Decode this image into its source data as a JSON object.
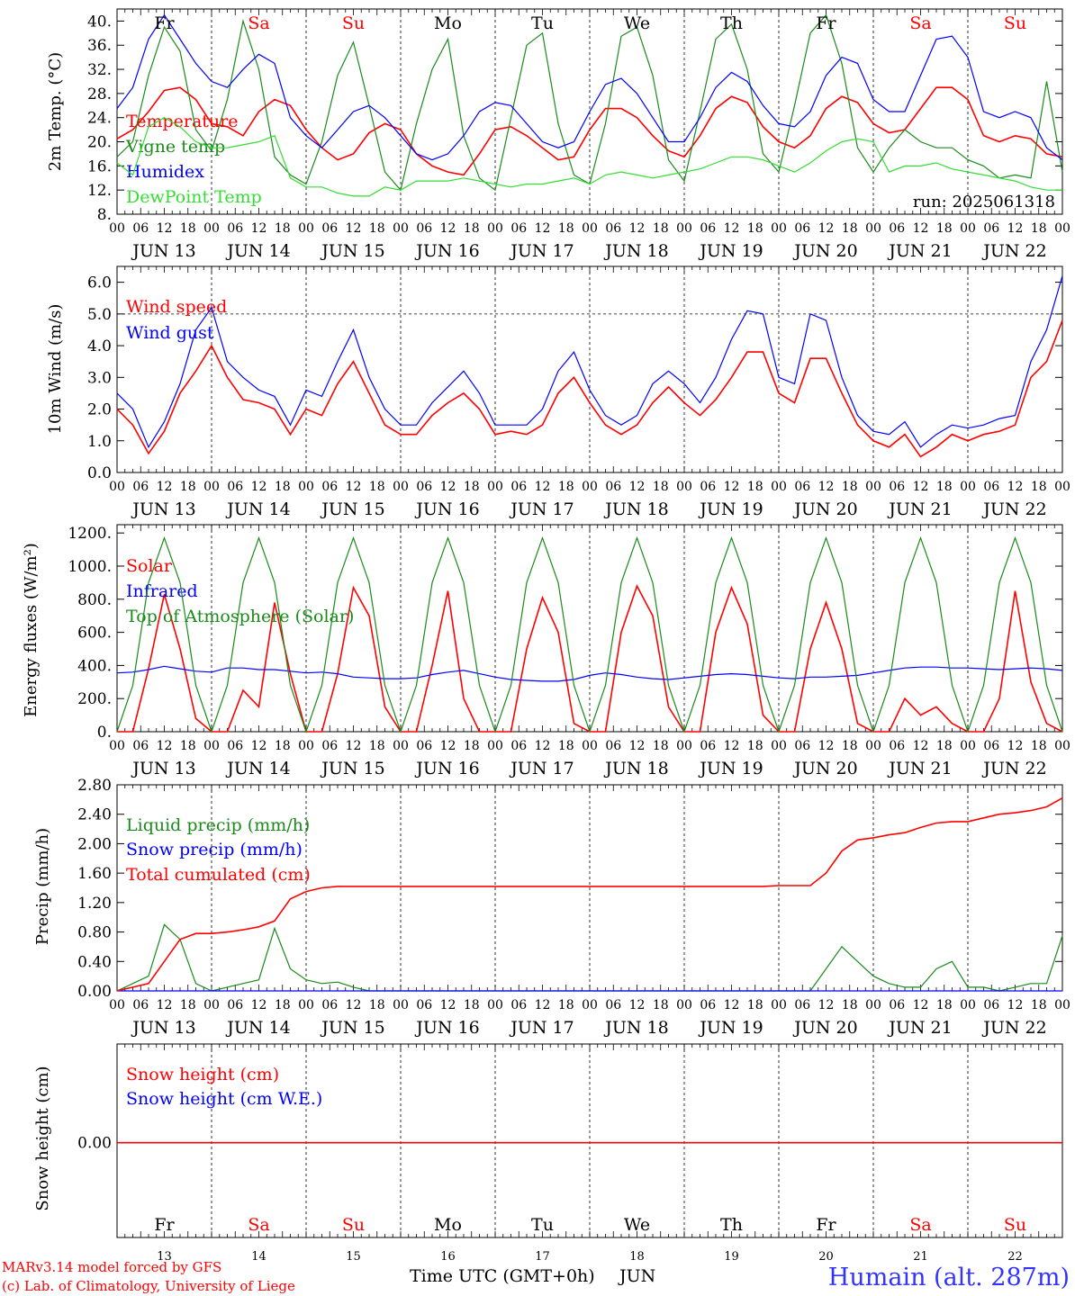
{
  "footer": {
    "model_line": "MARv3.14 model forced by GFS",
    "copyright_line": "(c) Lab. of Climatology, University of Liege",
    "time_axis_label": "Time UTC (GMT+0h)",
    "month_label": "JUN",
    "station": "Humain (alt. 287m)"
  },
  "colors": {
    "red": "#ff0000",
    "green": "#1a8a1a",
    "blue": "#0000ff",
    "lightgreen": "#33dd33",
    "weekday": "#000000",
    "weekend": "#ff0000",
    "station": "#3333ff"
  },
  "days": {
    "weekdays": [
      "Fr",
      "Sa",
      "Su",
      "Mo",
      "Tu",
      "We",
      "Th",
      "Fr",
      "Sa",
      "Su"
    ],
    "weekend": [
      false,
      true,
      true,
      false,
      false,
      false,
      false,
      false,
      true,
      true
    ],
    "dates": [
      "JUN 13",
      "JUN 14",
      "JUN 15",
      "JUN 16",
      "JUN 17",
      "JUN 18",
      "JUN 19",
      "JUN 20",
      "JUN 21",
      "JUN 22"
    ],
    "numbers": [
      "13",
      "14",
      "15",
      "16",
      "17",
      "18",
      "19",
      "20",
      "21",
      "22"
    ],
    "hour_labels": [
      "00",
      "06",
      "12",
      "18"
    ],
    "final_hour_label": "00"
  },
  "chart_data": [
    {
      "type": "line",
      "ylabel": "2m Temp. (°C)",
      "ylim": [
        8,
        42
      ],
      "yticks": [
        "8.",
        "12.",
        "16.",
        "20.",
        "24.",
        "28.",
        "32.",
        "36.",
        "40."
      ],
      "annotation": "run: 2025061318",
      "x_hours": [
        0,
        4,
        8,
        12,
        16,
        20,
        24,
        28,
        32,
        36,
        40,
        44,
        48,
        52,
        56,
        60,
        64,
        68,
        72,
        76,
        80,
        84,
        88,
        92,
        96,
        100,
        104,
        108,
        112,
        116,
        120,
        124,
        128,
        132,
        136,
        140,
        144,
        148,
        152,
        156,
        160,
        164,
        168,
        172,
        176,
        180,
        184,
        188,
        192,
        196,
        200,
        204,
        208,
        212,
        216,
        220,
        224,
        228,
        232,
        236,
        240
      ],
      "series": [
        {
          "name": "Temperature",
          "color": "red",
          "values": [
            20.5,
            22,
            25,
            28.5,
            29,
            27,
            23,
            22.5,
            21,
            25,
            27,
            26,
            22,
            19,
            17,
            18,
            21.5,
            23,
            22,
            18,
            16,
            15,
            14.5,
            18,
            22,
            22.5,
            21,
            19,
            17,
            17.5,
            22,
            25.5,
            25.5,
            24,
            21,
            18.5,
            17.5,
            21,
            25.5,
            27.5,
            26.5,
            22.5,
            20,
            19,
            21,
            25.5,
            27.5,
            26.5,
            23,
            21.5,
            22,
            25.5,
            29,
            29,
            27,
            21,
            20,
            21,
            20.5,
            18,
            17.5
          ]
        },
        {
          "name": "Vigne temp",
          "color": "green",
          "values": [
            17.5,
            20,
            31,
            39,
            35,
            22,
            18.5,
            27,
            40,
            32,
            17.5,
            14.5,
            13,
            20,
            31,
            36.5,
            26,
            15,
            12,
            23,
            32,
            37,
            21,
            14,
            12,
            24,
            36,
            38,
            23,
            14.5,
            13,
            23,
            37.5,
            39,
            31,
            17,
            13.5,
            25,
            37,
            39.5,
            32,
            18,
            15,
            26,
            38,
            41,
            33,
            19,
            15,
            19,
            22,
            20,
            19,
            19,
            17,
            16,
            14,
            14.5,
            14,
            30,
            15
          ]
        },
        {
          "name": "Humidex",
          "color": "blue",
          "values": [
            25.5,
            29,
            37,
            41,
            37,
            33,
            30,
            29,
            32,
            34.5,
            33,
            24,
            21,
            19,
            22,
            25,
            26,
            24,
            21,
            18,
            17,
            18,
            21,
            25,
            26.5,
            26,
            23,
            20,
            19,
            20,
            25,
            29.5,
            30.5,
            28,
            24,
            20,
            20,
            24,
            29,
            31.5,
            30,
            26,
            23,
            22.5,
            25,
            31,
            34,
            33,
            27,
            25,
            25,
            31,
            37,
            37.5,
            34,
            25,
            24,
            25,
            24,
            19,
            17
          ]
        },
        {
          "name": "DewPoint Temp",
          "color": "lightgreen",
          "values": [
            16.5,
            14.5,
            22.5,
            24,
            22.5,
            20,
            19,
            19,
            19.5,
            20,
            21,
            14,
            12.5,
            12.5,
            11.5,
            11,
            11,
            12.5,
            12,
            13.5,
            13.5,
            13.5,
            14,
            13.5,
            13,
            12.5,
            13,
            13,
            13.5,
            14,
            13,
            14.5,
            15,
            14.5,
            14,
            14.5,
            15,
            15.5,
            16.5,
            17.5,
            17.5,
            17,
            16,
            15,
            16.5,
            18.5,
            20,
            20.5,
            20,
            15,
            16,
            16,
            16.5,
            15.5,
            15,
            14.5,
            14,
            13.5,
            12.5,
            12,
            12
          ]
        }
      ]
    },
    {
      "type": "line",
      "ylabel": "10m Wind (m/s)",
      "ylim": [
        0,
        6.5
      ],
      "yticks": [
        "0.0",
        "1.0",
        "2.0",
        "3.0",
        "4.0",
        "5.0",
        "6.0"
      ],
      "reference_line": 5.0,
      "x_hours": [
        0,
        4,
        8,
        12,
        16,
        20,
        24,
        28,
        32,
        36,
        40,
        44,
        48,
        52,
        56,
        60,
        64,
        68,
        72,
        76,
        80,
        84,
        88,
        92,
        96,
        100,
        104,
        108,
        112,
        116,
        120,
        124,
        128,
        132,
        136,
        140,
        144,
        148,
        152,
        156,
        160,
        164,
        168,
        172,
        176,
        180,
        184,
        188,
        192,
        196,
        200,
        204,
        208,
        212,
        216,
        220,
        224,
        228,
        232,
        236,
        240
      ],
      "series": [
        {
          "name": "Wind speed",
          "color": "red",
          "values": [
            2,
            1.5,
            0.6,
            1.3,
            2.5,
            3.2,
            4,
            3,
            2.3,
            2.2,
            2,
            1.2,
            2,
            1.8,
            2.8,
            3.5,
            2.5,
            1.5,
            1.2,
            1.2,
            1.8,
            2.2,
            2.5,
            2,
            1.2,
            1.3,
            1.2,
            1.5,
            2.5,
            3,
            2.2,
            1.5,
            1.2,
            1.5,
            2.2,
            2.7,
            2.2,
            1.8,
            2.3,
            3,
            3.8,
            3.8,
            2.5,
            2.2,
            3.6,
            3.6,
            2.5,
            1.5,
            1,
            0.8,
            1.2,
            0.5,
            0.8,
            1.2,
            1,
            1.2,
            1.3,
            1.5,
            3,
            3.5,
            4.8
          ]
        },
        {
          "name": "Wind gust",
          "color": "blue",
          "values": [
            2.5,
            2,
            0.8,
            1.6,
            2.8,
            4.5,
            5.2,
            3.5,
            3,
            2.6,
            2.4,
            1.5,
            2.6,
            2.4,
            3.5,
            4.5,
            3,
            2,
            1.5,
            1.5,
            2.2,
            2.7,
            3.2,
            2.5,
            1.5,
            1.5,
            1.5,
            2,
            3.2,
            3.8,
            2.6,
            1.8,
            1.5,
            1.8,
            2.8,
            3.2,
            2.8,
            2.2,
            3,
            4.2,
            5.1,
            5,
            3,
            2.8,
            5,
            4.8,
            3,
            1.8,
            1.3,
            1.2,
            1.6,
            0.8,
            1.2,
            1.5,
            1.4,
            1.5,
            1.7,
            1.8,
            3.5,
            4.5,
            6.2
          ]
        }
      ]
    },
    {
      "type": "line",
      "ylabel": "Energy fluxes (W/m²)",
      "ylim": [
        0,
        1250
      ],
      "yticks": [
        "0.",
        "200.",
        "400.",
        "600.",
        "800.",
        "1000.",
        "1200."
      ],
      "x_hours": [
        0,
        4,
        8,
        12,
        16,
        20,
        24,
        28,
        32,
        36,
        40,
        44,
        48,
        52,
        56,
        60,
        64,
        68,
        72,
        76,
        80,
        84,
        88,
        92,
        96,
        100,
        104,
        108,
        112,
        116,
        120,
        124,
        128,
        132,
        136,
        140,
        144,
        148,
        152,
        156,
        160,
        164,
        168,
        172,
        176,
        180,
        184,
        188,
        192,
        196,
        200,
        204,
        208,
        212,
        216,
        220,
        224,
        228,
        232,
        236,
        240
      ],
      "series": [
        {
          "name": "Solar",
          "color": "red",
          "values": [
            0,
            0,
            380,
            830,
            500,
            80,
            0,
            0,
            250,
            150,
            780,
            350,
            0,
            0,
            350,
            870,
            700,
            150,
            0,
            0,
            400,
            850,
            200,
            0,
            0,
            0,
            500,
            810,
            600,
            50,
            0,
            0,
            600,
            880,
            700,
            150,
            0,
            0,
            600,
            870,
            650,
            100,
            0,
            0,
            500,
            780,
            500,
            50,
            0,
            0,
            200,
            100,
            150,
            50,
            0,
            0,
            200,
            850,
            300,
            50,
            0
          ]
        },
        {
          "name": "Infrared",
          "color": "blue",
          "values": [
            355,
            360,
            375,
            395,
            380,
            365,
            360,
            385,
            385,
            375,
            375,
            365,
            355,
            360,
            350,
            330,
            325,
            320,
            320,
            325,
            345,
            360,
            370,
            350,
            330,
            315,
            310,
            305,
            305,
            315,
            340,
            355,
            345,
            330,
            320,
            315,
            325,
            335,
            345,
            350,
            345,
            335,
            325,
            320,
            330,
            330,
            335,
            340,
            355,
            370,
            385,
            390,
            390,
            385,
            385,
            380,
            375,
            380,
            385,
            380,
            370
          ]
        },
        {
          "name": "Top of Atmosphere (Solar)",
          "color": "green",
          "values": [
            0,
            280,
            900,
            1170,
            900,
            280,
            0,
            280,
            900,
            1170,
            900,
            280,
            0,
            280,
            900,
            1170,
            900,
            280,
            0,
            280,
            900,
            1170,
            900,
            280,
            0,
            280,
            900,
            1170,
            900,
            280,
            0,
            280,
            900,
            1170,
            900,
            280,
            0,
            280,
            900,
            1170,
            900,
            280,
            0,
            280,
            900,
            1170,
            900,
            280,
            0,
            280,
            900,
            1170,
            900,
            280,
            0,
            280,
            900,
            1170,
            900,
            280,
            0
          ]
        }
      ]
    },
    {
      "type": "line",
      "ylabel": "Precip (mm/h)",
      "ylim": [
        0,
        2.8
      ],
      "yticks": [
        "0.00",
        "0.40",
        "0.80",
        "1.20",
        "1.60",
        "2.00",
        "2.40",
        "2.80"
      ],
      "x_hours": [
        0,
        4,
        8,
        12,
        16,
        20,
        24,
        28,
        32,
        36,
        40,
        44,
        48,
        52,
        56,
        60,
        64,
        68,
        72,
        76,
        80,
        84,
        88,
        92,
        96,
        100,
        104,
        108,
        112,
        116,
        120,
        124,
        128,
        132,
        136,
        140,
        144,
        148,
        152,
        156,
        160,
        164,
        168,
        172,
        176,
        180,
        184,
        188,
        192,
        196,
        200,
        204,
        208,
        212,
        216,
        220,
        224,
        228,
        232,
        236,
        240
      ],
      "series": [
        {
          "name": "Liquid precip (mm/h)",
          "color": "green",
          "values": [
            0,
            0.1,
            0.2,
            0.9,
            0.7,
            0.1,
            0,
            0.05,
            0.1,
            0.15,
            0.85,
            0.3,
            0.15,
            0.1,
            0.12,
            0.05,
            0,
            0,
            0,
            0,
            0,
            0,
            0,
            0,
            0,
            0,
            0,
            0,
            0,
            0,
            0,
            0,
            0,
            0,
            0,
            0,
            0,
            0,
            0,
            0,
            0,
            0,
            0,
            0,
            0,
            0.3,
            0.6,
            0.4,
            0.2,
            0.1,
            0.05,
            0.05,
            0.3,
            0.4,
            0.05,
            0.05,
            0,
            0.05,
            0.1,
            0.1,
            0.75
          ]
        },
        {
          "name": "Snow precip (mm/h)",
          "color": "blue",
          "values": [
            0,
            0,
            0,
            0,
            0,
            0,
            0,
            0,
            0,
            0,
            0,
            0,
            0,
            0,
            0,
            0,
            0,
            0,
            0,
            0,
            0,
            0,
            0,
            0,
            0,
            0,
            0,
            0,
            0,
            0,
            0,
            0,
            0,
            0,
            0,
            0,
            0,
            0,
            0,
            0,
            0,
            0,
            0,
            0,
            0,
            0,
            0,
            0,
            0,
            0,
            0,
            0,
            0,
            0,
            0,
            0,
            0,
            0,
            0,
            0,
            0
          ]
        },
        {
          "name": "Total cumulated (cm)",
          "color": "red",
          "values": [
            0,
            0.05,
            0.1,
            0.4,
            0.7,
            0.78,
            0.78,
            0.8,
            0.83,
            0.87,
            0.95,
            1.25,
            1.35,
            1.4,
            1.42,
            1.42,
            1.42,
            1.42,
            1.42,
            1.42,
            1.42,
            1.42,
            1.42,
            1.42,
            1.42,
            1.42,
            1.42,
            1.42,
            1.42,
            1.42,
            1.42,
            1.42,
            1.42,
            1.42,
            1.42,
            1.42,
            1.42,
            1.42,
            1.42,
            1.42,
            1.42,
            1.42,
            1.43,
            1.43,
            1.43,
            1.6,
            1.9,
            2.05,
            2.08,
            2.12,
            2.15,
            2.22,
            2.28,
            2.3,
            2.3,
            2.35,
            2.4,
            2.42,
            2.45,
            2.5,
            2.62
          ]
        }
      ]
    },
    {
      "type": "line",
      "ylabel": "Snow height (cm)",
      "yticks": [
        "0.00"
      ],
      "x_hours": [
        0,
        240
      ],
      "series": [
        {
          "name": "Snow height (cm)",
          "color": "red",
          "values": [
            0,
            0
          ]
        },
        {
          "name": "Snow height (cm W.E.)",
          "color": "blue",
          "values": []
        }
      ]
    }
  ]
}
